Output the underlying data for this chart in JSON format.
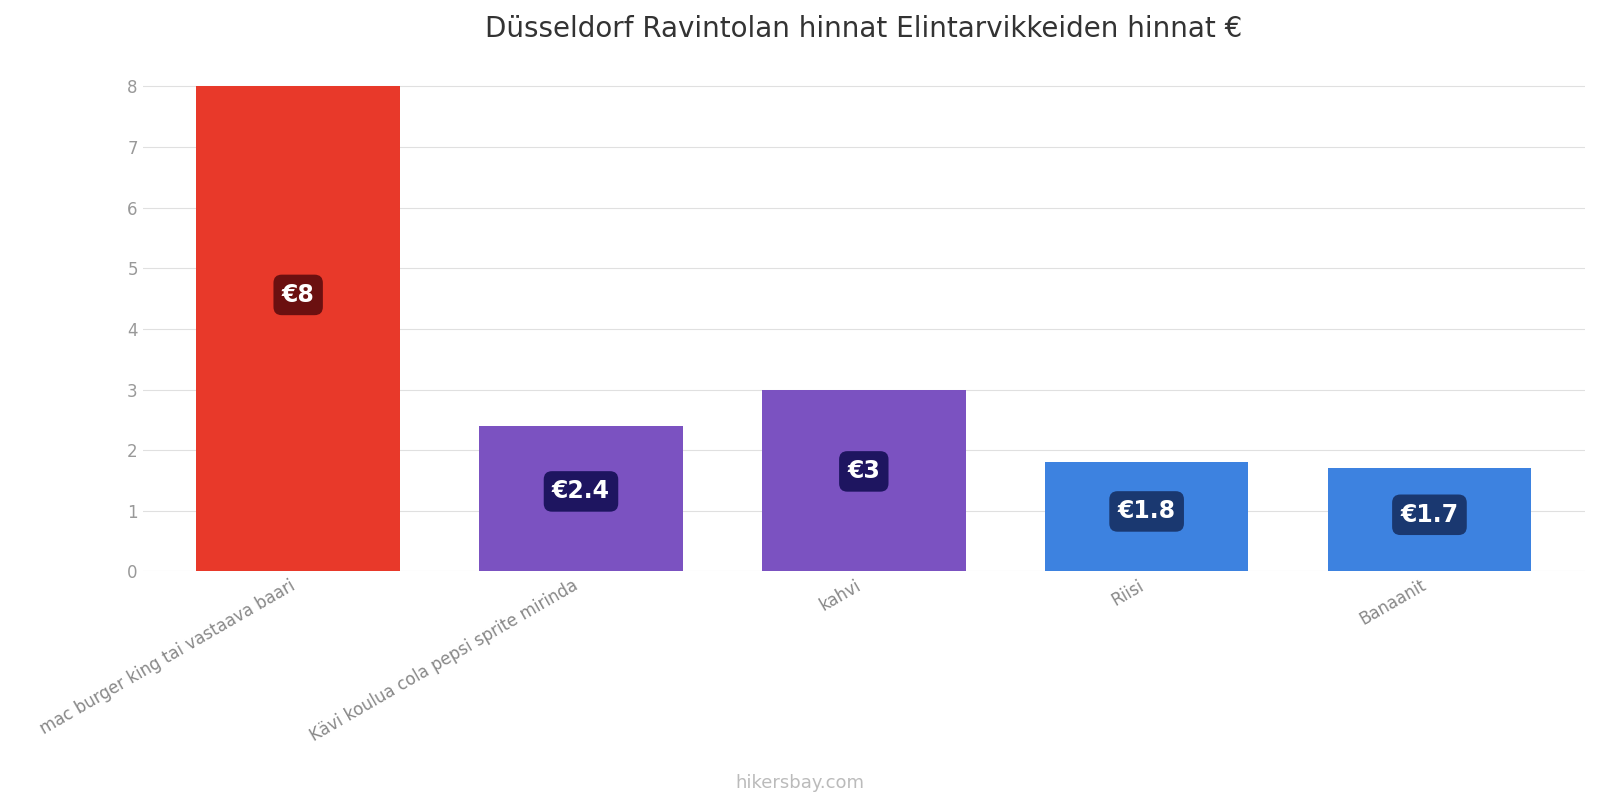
{
  "title": "Düsseldorf Ravintolan hinnat Elintarvikkeiden hinnat €",
  "categories": [
    "mac burger king tai vastaava baari",
    "Kävi koulua cola pepsi sprite mirinda",
    "kahvi",
    "Riisi",
    "Banaanit"
  ],
  "values": [
    8,
    2.4,
    3,
    1.8,
    1.7
  ],
  "bar_colors": [
    "#e8392a",
    "#7b52c1",
    "#7b52c1",
    "#3d82e0",
    "#3d82e0"
  ],
  "label_texts": [
    "€8",
    "€2.4",
    "€3",
    "€1.8",
    "€1.7"
  ],
  "label_box_colors": [
    "#6b1010",
    "#1e1560",
    "#1e1560",
    "#1a3870",
    "#1a3870"
  ],
  "ylim": [
    0,
    8.4
  ],
  "yticks": [
    0,
    1,
    2,
    3,
    4,
    5,
    6,
    7,
    8
  ],
  "footer_text": "hikersbay.com",
  "background_color": "#ffffff",
  "grid_color": "#e0e0e0",
  "title_fontsize": 20,
  "tick_fontsize": 12,
  "label_fontsize": 17,
  "footer_fontsize": 13,
  "bar_width": 0.72
}
